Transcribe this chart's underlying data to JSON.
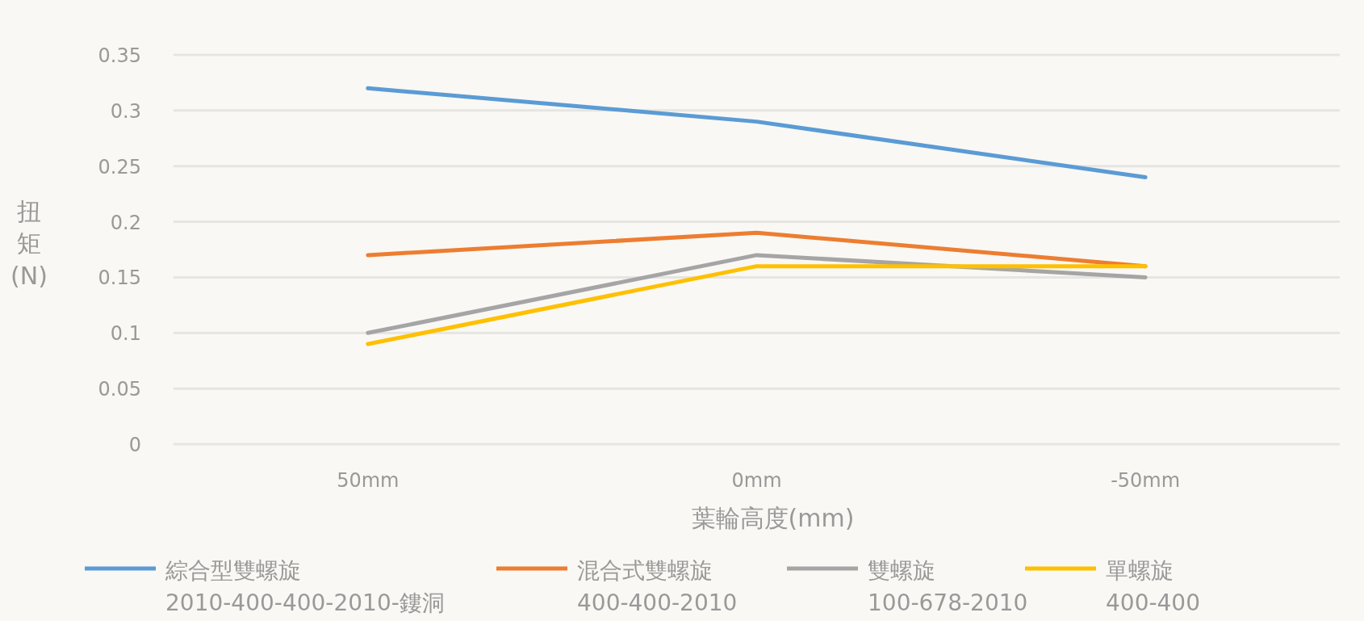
{
  "chart_data": {
    "type": "line",
    "xlabel": "葉輪高度(mm)",
    "ylabel": "扭矩(N)",
    "categories": [
      "50mm",
      "0mm",
      "-50mm"
    ],
    "series": [
      {
        "name": "綜合型雙螺旋\n2010-400-400-2010-鏤洞",
        "color": "#5b9bd5",
        "values": [
          0.32,
          0.29,
          0.24
        ]
      },
      {
        "name": "混合式雙螺旋\n400-400-2010",
        "color": "#ed7d31",
        "values": [
          0.17,
          0.19,
          0.16
        ]
      },
      {
        "name": "雙螺旋\n100-678-2010",
        "color": "#a5a5a5",
        "values": [
          0.1,
          0.17,
          0.15
        ]
      },
      {
        "name": "單螺旋\n400-400",
        "color": "#ffc000",
        "values": [
          0.09,
          0.16,
          0.16
        ]
      }
    ],
    "ylim": [
      0,
      0.35
    ],
    "yticks": [
      0,
      0.05,
      0.1,
      0.15,
      0.2,
      0.25,
      0.3,
      0.35
    ],
    "grid": "y",
    "legend": "bottom",
    "marker": "none",
    "line_style": "solid"
  }
}
